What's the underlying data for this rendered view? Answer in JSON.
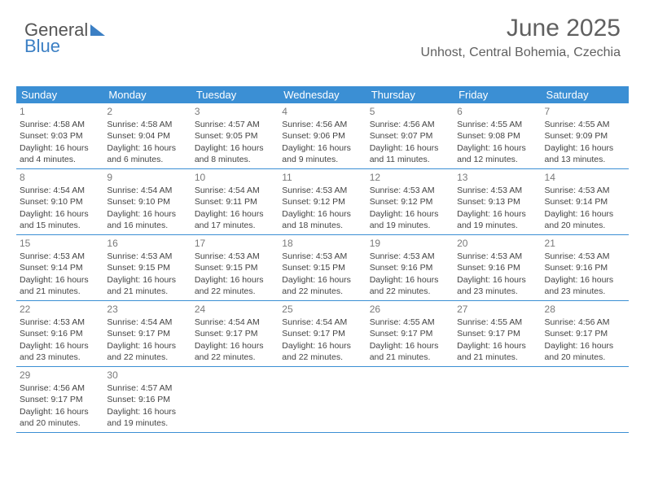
{
  "logo": {
    "word1": "General",
    "word2": "Blue"
  },
  "header": {
    "title": "June 2025",
    "location": "Unhost, Central Bohemia, Czechia"
  },
  "colors": {
    "header_bar": "#3b8fd4",
    "rule": "#3b8fd4",
    "text": "#444444",
    "title_text": "#606060",
    "logo_blue": "#3b7fc4",
    "background": "#ffffff"
  },
  "table": {
    "type": "calendar",
    "day_headers": [
      "Sunday",
      "Monday",
      "Tuesday",
      "Wednesday",
      "Thursday",
      "Friday",
      "Saturday"
    ],
    "header_fontsize": 13,
    "cell_fontsize": 10.5,
    "daynum_fontsize": 12,
    "weeks": [
      [
        {
          "n": "1",
          "sunrise": "4:58 AM",
          "sunset": "9:03 PM",
          "daylight": "16 hours and 4 minutes."
        },
        {
          "n": "2",
          "sunrise": "4:58 AM",
          "sunset": "9:04 PM",
          "daylight": "16 hours and 6 minutes."
        },
        {
          "n": "3",
          "sunrise": "4:57 AM",
          "sunset": "9:05 PM",
          "daylight": "16 hours and 8 minutes."
        },
        {
          "n": "4",
          "sunrise": "4:56 AM",
          "sunset": "9:06 PM",
          "daylight": "16 hours and 9 minutes."
        },
        {
          "n": "5",
          "sunrise": "4:56 AM",
          "sunset": "9:07 PM",
          "daylight": "16 hours and 11 minutes."
        },
        {
          "n": "6",
          "sunrise": "4:55 AM",
          "sunset": "9:08 PM",
          "daylight": "16 hours and 12 minutes."
        },
        {
          "n": "7",
          "sunrise": "4:55 AM",
          "sunset": "9:09 PM",
          "daylight": "16 hours and 13 minutes."
        }
      ],
      [
        {
          "n": "8",
          "sunrise": "4:54 AM",
          "sunset": "9:10 PM",
          "daylight": "16 hours and 15 minutes."
        },
        {
          "n": "9",
          "sunrise": "4:54 AM",
          "sunset": "9:10 PM",
          "daylight": "16 hours and 16 minutes."
        },
        {
          "n": "10",
          "sunrise": "4:54 AM",
          "sunset": "9:11 PM",
          "daylight": "16 hours and 17 minutes."
        },
        {
          "n": "11",
          "sunrise": "4:53 AM",
          "sunset": "9:12 PM",
          "daylight": "16 hours and 18 minutes."
        },
        {
          "n": "12",
          "sunrise": "4:53 AM",
          "sunset": "9:12 PM",
          "daylight": "16 hours and 19 minutes."
        },
        {
          "n": "13",
          "sunrise": "4:53 AM",
          "sunset": "9:13 PM",
          "daylight": "16 hours and 19 minutes."
        },
        {
          "n": "14",
          "sunrise": "4:53 AM",
          "sunset": "9:14 PM",
          "daylight": "16 hours and 20 minutes."
        }
      ],
      [
        {
          "n": "15",
          "sunrise": "4:53 AM",
          "sunset": "9:14 PM",
          "daylight": "16 hours and 21 minutes."
        },
        {
          "n": "16",
          "sunrise": "4:53 AM",
          "sunset": "9:15 PM",
          "daylight": "16 hours and 21 minutes."
        },
        {
          "n": "17",
          "sunrise": "4:53 AM",
          "sunset": "9:15 PM",
          "daylight": "16 hours and 22 minutes."
        },
        {
          "n": "18",
          "sunrise": "4:53 AM",
          "sunset": "9:15 PM",
          "daylight": "16 hours and 22 minutes."
        },
        {
          "n": "19",
          "sunrise": "4:53 AM",
          "sunset": "9:16 PM",
          "daylight": "16 hours and 22 minutes."
        },
        {
          "n": "20",
          "sunrise": "4:53 AM",
          "sunset": "9:16 PM",
          "daylight": "16 hours and 23 minutes."
        },
        {
          "n": "21",
          "sunrise": "4:53 AM",
          "sunset": "9:16 PM",
          "daylight": "16 hours and 23 minutes."
        }
      ],
      [
        {
          "n": "22",
          "sunrise": "4:53 AM",
          "sunset": "9:16 PM",
          "daylight": "16 hours and 23 minutes."
        },
        {
          "n": "23",
          "sunrise": "4:54 AM",
          "sunset": "9:17 PM",
          "daylight": "16 hours and 22 minutes."
        },
        {
          "n": "24",
          "sunrise": "4:54 AM",
          "sunset": "9:17 PM",
          "daylight": "16 hours and 22 minutes."
        },
        {
          "n": "25",
          "sunrise": "4:54 AM",
          "sunset": "9:17 PM",
          "daylight": "16 hours and 22 minutes."
        },
        {
          "n": "26",
          "sunrise": "4:55 AM",
          "sunset": "9:17 PM",
          "daylight": "16 hours and 21 minutes."
        },
        {
          "n": "27",
          "sunrise": "4:55 AM",
          "sunset": "9:17 PM",
          "daylight": "16 hours and 21 minutes."
        },
        {
          "n": "28",
          "sunrise": "4:56 AM",
          "sunset": "9:17 PM",
          "daylight": "16 hours and 20 minutes."
        }
      ],
      [
        {
          "n": "29",
          "sunrise": "4:56 AM",
          "sunset": "9:17 PM",
          "daylight": "16 hours and 20 minutes."
        },
        {
          "n": "30",
          "sunrise": "4:57 AM",
          "sunset": "9:16 PM",
          "daylight": "16 hours and 19 minutes."
        },
        null,
        null,
        null,
        null,
        null
      ]
    ]
  },
  "labels": {
    "sunrise_prefix": "Sunrise: ",
    "sunset_prefix": "Sunset: ",
    "daylight_prefix": "Daylight: "
  }
}
